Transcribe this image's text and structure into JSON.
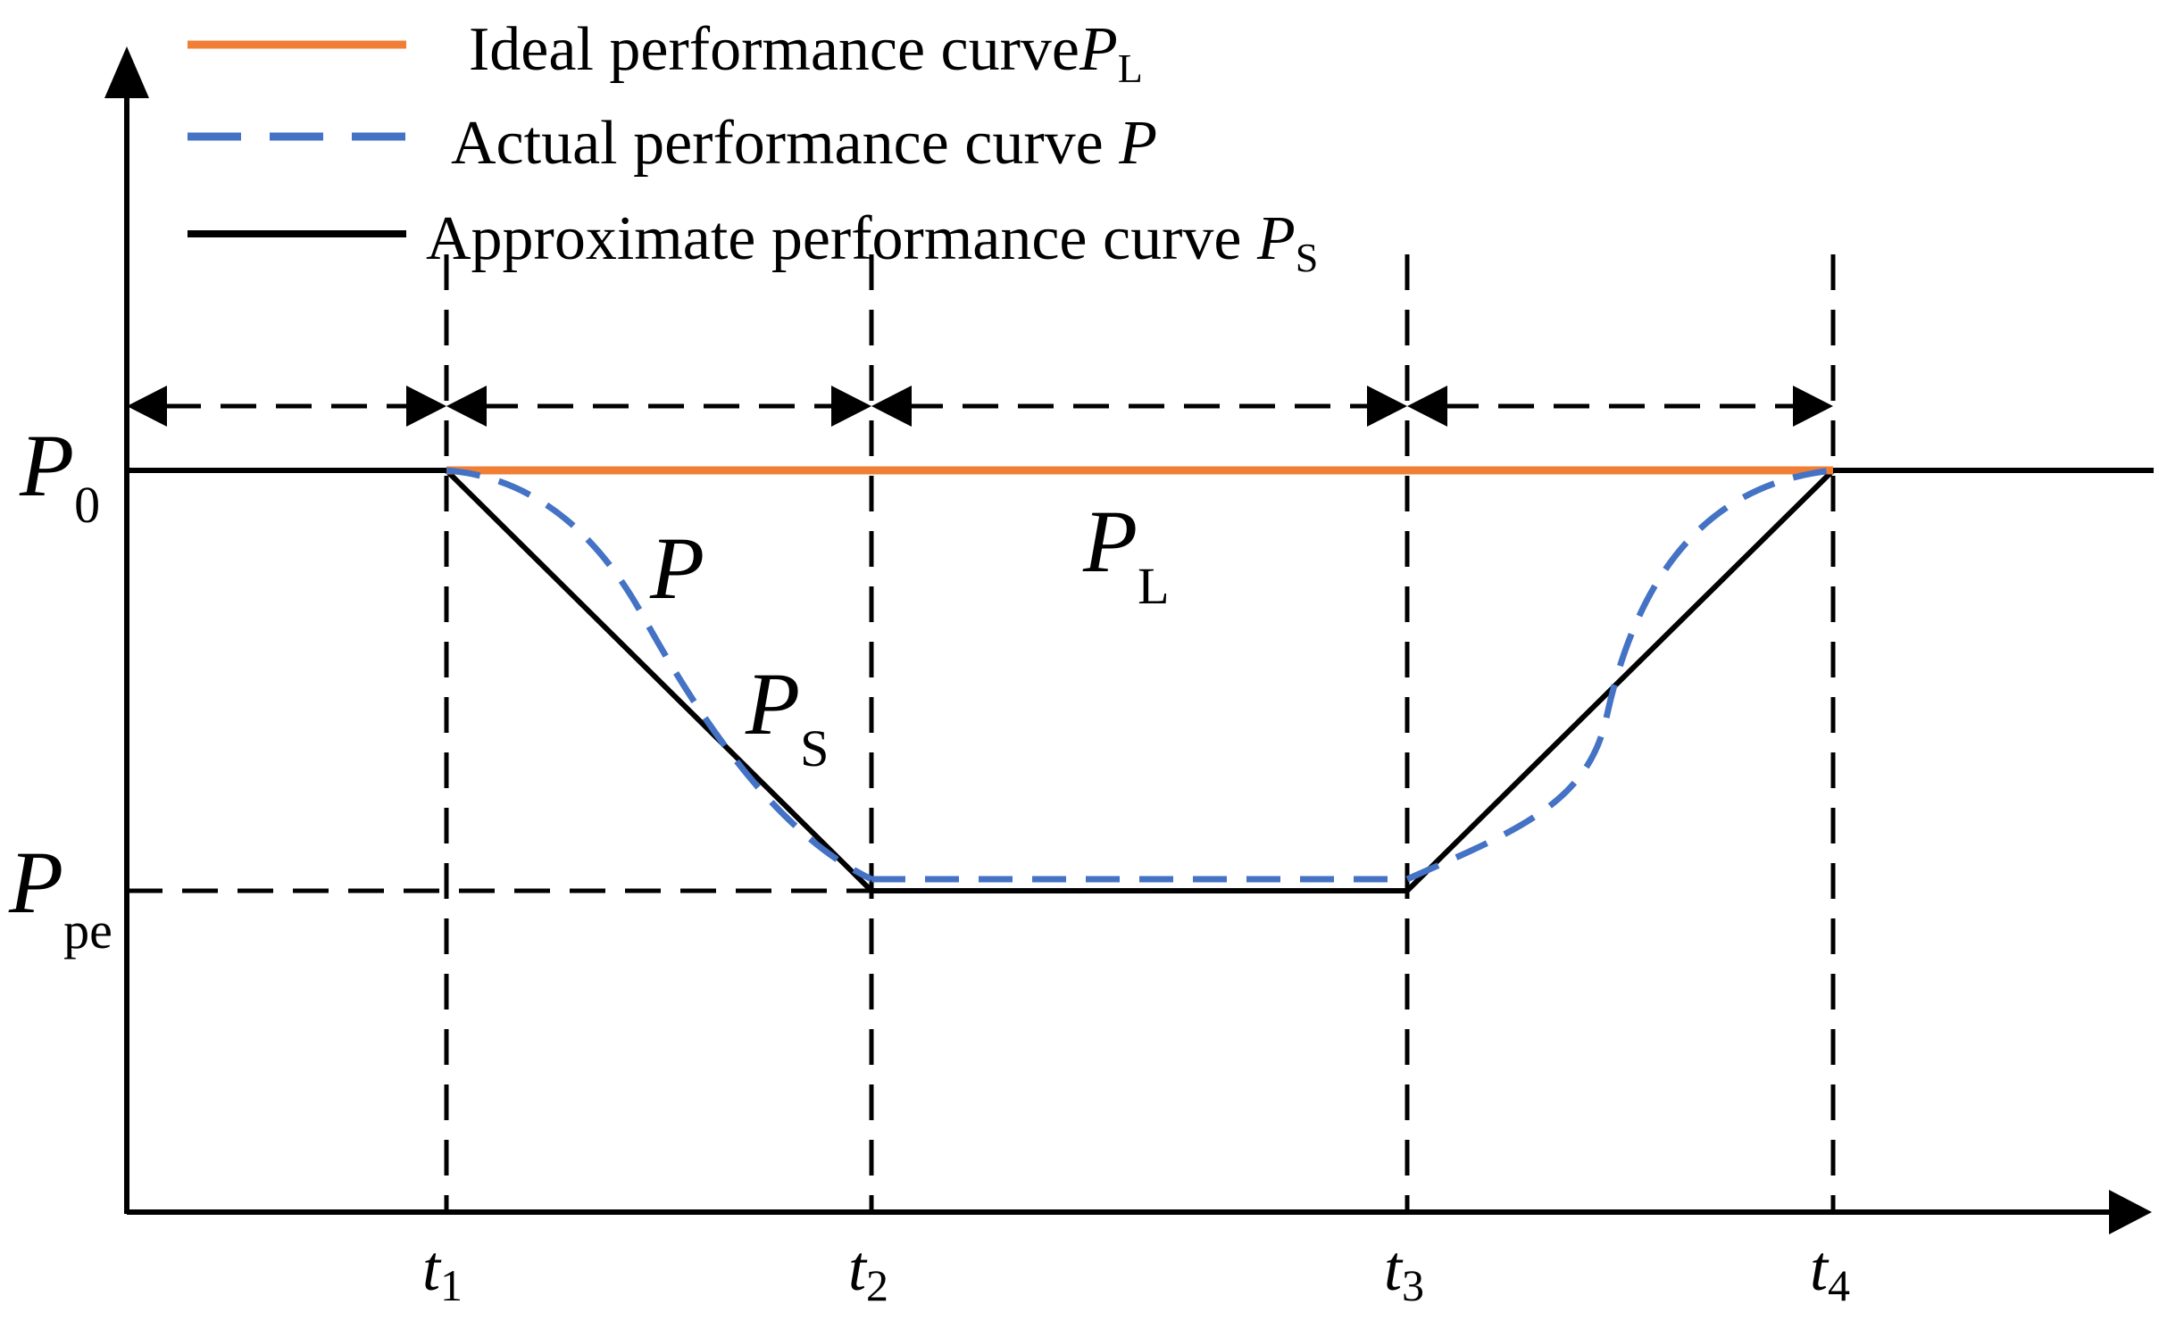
{
  "legend": {
    "ideal": {
      "label": "Ideal performance curve",
      "symbol": "P",
      "sub": "L",
      "color": "#F07F35"
    },
    "actual": {
      "label": "Actual performance curve ",
      "symbol": "P",
      "sub": "",
      "color": "#4472C4"
    },
    "approx": {
      "label": "Approximate performance curve ",
      "symbol": "P",
      "sub": "S",
      "color": "#000000"
    }
  },
  "y_labels": {
    "p0": {
      "symbol": "P",
      "sub": "0"
    },
    "ppe": {
      "symbol": "P",
      "sub": "pe"
    }
  },
  "x_labels": [
    {
      "symbol": "t",
      "sub": "1"
    },
    {
      "symbol": "t",
      "sub": "2"
    },
    {
      "symbol": "t",
      "sub": "3"
    },
    {
      "symbol": "t",
      "sub": "4"
    }
  ],
  "curve_labels": {
    "p": {
      "symbol": "P",
      "sub": ""
    },
    "ps": {
      "symbol": "P",
      "sub": "S"
    },
    "pl": {
      "symbol": "P",
      "sub": "L"
    }
  }
}
